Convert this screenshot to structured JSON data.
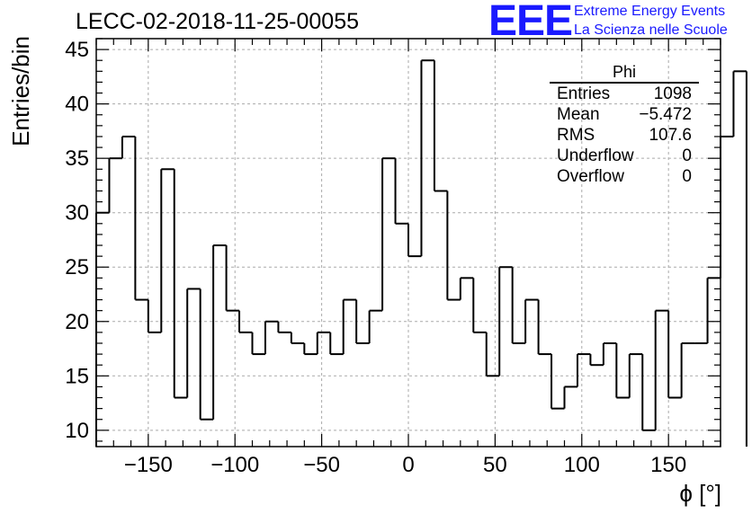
{
  "chart_data": {
    "type": "histogram",
    "title": "LECC-02-2018-11-25-00055",
    "xlabel": "ϕ [°]",
    "ylabel": "Entries/bin",
    "xlim": [
      -180,
      180
    ],
    "ylim": [
      8.5,
      46
    ],
    "grid": true,
    "bin_width": 7.5,
    "bin_start": -180,
    "values": [
      30,
      35,
      37,
      22,
      19,
      34,
      13,
      23,
      11,
      27,
      21,
      19,
      17,
      20,
      19,
      18,
      17,
      19,
      17,
      22,
      18,
      21,
      35,
      29,
      26,
      44,
      32,
      22,
      24,
      19,
      15,
      25,
      18,
      22,
      17,
      12,
      14,
      17,
      16,
      18,
      13,
      17,
      10,
      21,
      13,
      18,
      18,
      24,
      37,
      43
    ],
    "xticks": [
      -150,
      -100,
      -50,
      0,
      50,
      100,
      150
    ],
    "xtick_labels": [
      "−150",
      "−100",
      "−50",
      "0",
      "50",
      "100",
      "150"
    ],
    "yticks": [
      10,
      15,
      20,
      25,
      30,
      35,
      40,
      45
    ],
    "ytick_labels": [
      "10",
      "15",
      "20",
      "25",
      "30",
      "35",
      "40",
      "45"
    ]
  },
  "logo": {
    "mark": "EEE",
    "line1": "Extreme Energy Events",
    "line2": "La Scienza nelle Scuole"
  },
  "stats": {
    "name": "Phi",
    "rows": [
      {
        "label": "Entries",
        "value": "1098"
      },
      {
        "label": "Mean",
        "value": "−5.472"
      },
      {
        "label": "RMS",
        "value": "107.6"
      },
      {
        "label": "Underflow",
        "value": "0"
      },
      {
        "label": "Overflow",
        "value": "0"
      }
    ]
  },
  "colors": {
    "line": "#000000",
    "grid": "#aaaaaa",
    "logo": "#1a1aff"
  }
}
